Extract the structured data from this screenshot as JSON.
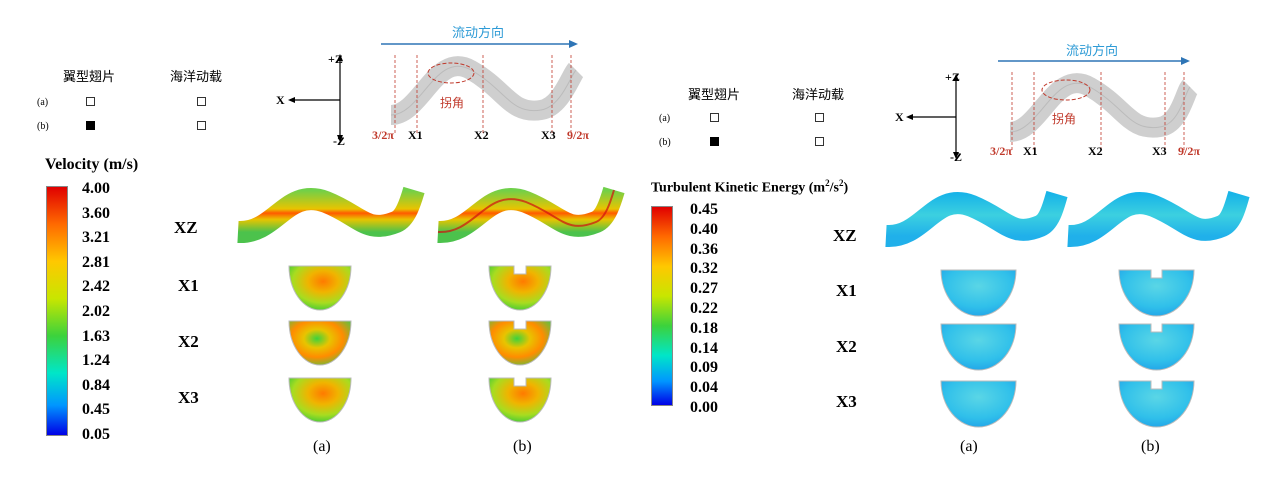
{
  "legend_table": {
    "col1": "翼型翅片",
    "col2": "海洋动载",
    "row_a": "(a)",
    "row_b": "(b)",
    "state": {
      "a": [
        false,
        false
      ],
      "b": [
        true,
        false
      ]
    }
  },
  "axes": {
    "plus_z": "+Z",
    "minus_z": "-Z",
    "x": "X"
  },
  "schematic": {
    "flow_direction": "流动方向",
    "corner_label": "拐角",
    "start_label": "3/2π",
    "end_label": "9/2π",
    "sections": [
      "X1",
      "X2",
      "X3"
    ]
  },
  "velocity_panel": {
    "scale_title": "Velocity (m/s)",
    "ticks": [
      "4.00",
      "3.60",
      "3.21",
      "2.81",
      "2.42",
      "2.02",
      "1.63",
      "1.24",
      "0.84",
      "0.45",
      "0.05"
    ],
    "row_labels": [
      "XZ",
      "X1",
      "X2",
      "X3"
    ],
    "captions": [
      "(a)",
      "(b)"
    ]
  },
  "tke_panel": {
    "scale_title": "Turbulent Kinetic Energy (m",
    "scale_title_sup1": "2",
    "scale_title_mid": "/s",
    "scale_title_sup2": "2",
    "scale_title_end": ")",
    "ticks": [
      "0.45",
      "0.40",
      "0.36",
      "0.32",
      "0.27",
      "0.22",
      "0.18",
      "0.14",
      "0.09",
      "0.04",
      "0.00"
    ],
    "row_labels": [
      "XZ",
      "X1",
      "X2",
      "X3"
    ],
    "captions": [
      "(a)",
      "(b)"
    ]
  },
  "colors": {
    "flow_blue": "#2e75b6",
    "annot_red": "#c0392b",
    "pipe_gray": "#d0d0d0"
  }
}
